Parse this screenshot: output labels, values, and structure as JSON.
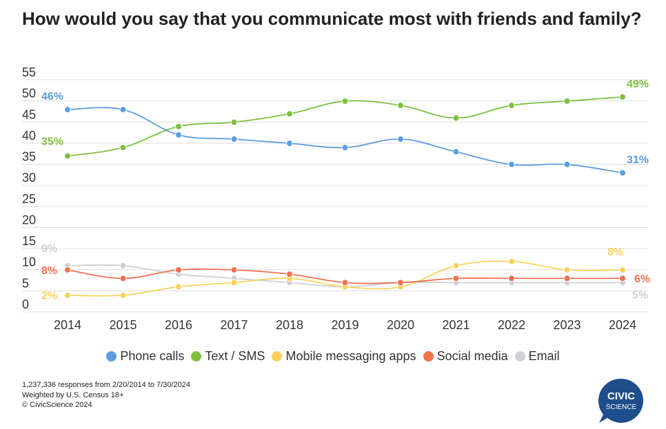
{
  "title": "How would you say that you communicate most with friends and family?",
  "footnotes": [
    "1,237,336 responses from 2/20/2014 to 7/30/2024",
    "Weighted by U.S. Census 18+",
    "© CivicScience 2024"
  ],
  "logo": {
    "line1": "CIVIC",
    "line2": "SCIENCE",
    "color": "#1f4e8c"
  },
  "chart_data": {
    "type": "line",
    "title": "How would you say that you communicate most with friends and family?",
    "x": [
      "2014",
      "2015",
      "2016",
      "2017",
      "2018",
      "2019",
      "2020",
      "2021",
      "2022",
      "2023",
      "2024"
    ],
    "ylim": [
      0,
      55
    ],
    "yticks": [
      "0",
      "5",
      "10",
      "15",
      "20",
      "25",
      "30",
      "35",
      "40",
      "45",
      "50",
      "55"
    ],
    "grid": true,
    "legend_position": "bottom",
    "series": [
      {
        "name": "Phone calls",
        "color": "#5b9de0",
        "values": [
          46,
          46,
          40,
          39,
          38,
          37,
          39,
          36,
          33,
          33,
          31
        ],
        "start_label": "46%",
        "end_label": "31%"
      },
      {
        "name": "Text / SMS",
        "color": "#7fbf3f",
        "values": [
          35,
          37,
          42,
          43,
          45,
          48,
          47,
          44,
          47,
          48,
          49
        ],
        "start_label": "35%",
        "end_label": "49%"
      },
      {
        "name": "Mobile messaging apps",
        "color": "#f8d25a",
        "values": [
          2,
          2,
          4,
          5,
          6,
          4,
          4,
          9,
          10,
          8,
          8
        ],
        "start_label": "2%",
        "end_label": "8%"
      },
      {
        "name": "Social media",
        "color": "#f07150",
        "values": [
          8,
          6,
          8,
          8,
          7,
          5,
          5,
          6,
          6,
          6,
          6
        ],
        "start_label": "8%",
        "end_label": "6%"
      },
      {
        "name": "Email",
        "color": "#cfcfd4",
        "values": [
          9,
          9,
          7,
          6,
          5,
          4,
          5,
          5,
          5,
          5,
          5
        ],
        "start_label": "9%",
        "end_label": "5%"
      }
    ]
  }
}
